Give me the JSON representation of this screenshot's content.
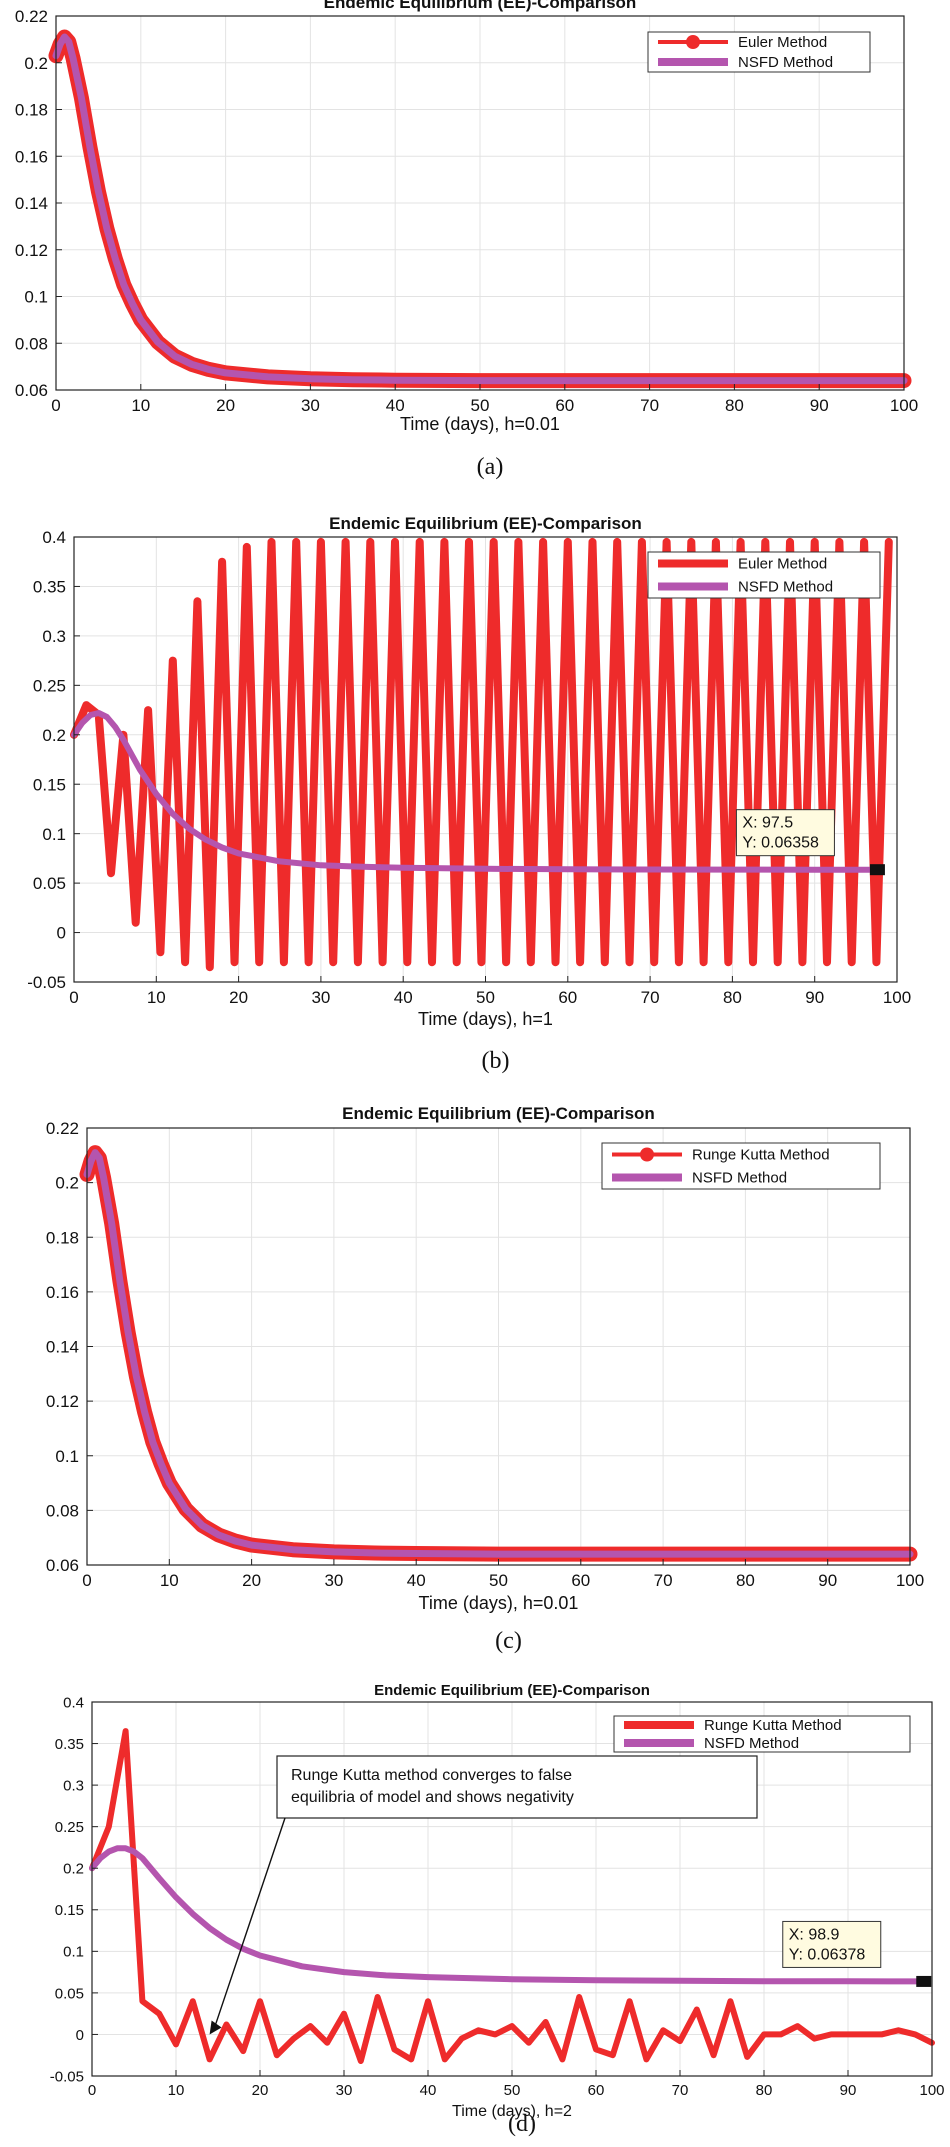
{
  "colors": {
    "euler": "#EE2B2B",
    "rk": "#EE2B2B",
    "nsfd": "#B455AE",
    "grid": "#e3e3e3",
    "axis": "#222222",
    "datatip_bg": "#fffbe0"
  },
  "chart_data": [
    {
      "panel": "a",
      "type": "line",
      "title": "Endemic Equilibrium (EE)-Comparison",
      "xlabel": "Time (days), h=0.01",
      "ylabel": "",
      "caption": "(a)",
      "xlim": [
        0,
        100
      ],
      "ylim": [
        0.06,
        0.22
      ],
      "xticks": [
        0,
        10,
        20,
        30,
        40,
        50,
        60,
        70,
        80,
        90,
        100
      ],
      "yticks": [
        0.06,
        0.08,
        0.1,
        0.12,
        0.14,
        0.16,
        0.18,
        0.2,
        0.22
      ],
      "ytick_labels": [
        "0.06",
        "0.08",
        "0.1",
        "0.12",
        "0.14",
        "0.16",
        "0.18",
        "0.2",
        "0.22"
      ],
      "grid": true,
      "legend": "top-right",
      "series": [
        {
          "name": "Euler Method",
          "role": "red",
          "style": "thick-marker",
          "x": [
            0,
            0.5,
            1,
            1.5,
            2,
            3,
            4,
            5,
            6,
            7,
            8,
            9,
            10,
            12,
            14,
            16,
            18,
            20,
            25,
            30,
            35,
            40,
            50,
            60,
            70,
            80,
            90,
            100
          ],
          "y": [
            0.203,
            0.208,
            0.211,
            0.209,
            0.202,
            0.185,
            0.164,
            0.145,
            0.129,
            0.116,
            0.105,
            0.097,
            0.09,
            0.0805,
            0.0745,
            0.071,
            0.0688,
            0.0673,
            0.0656,
            0.0648,
            0.0644,
            0.0642,
            0.064,
            0.064,
            0.064,
            0.064,
            0.064,
            0.064
          ]
        },
        {
          "name": "NSFD Method",
          "role": "purple",
          "style": "line",
          "x": [
            0,
            0.5,
            1,
            1.5,
            2,
            3,
            4,
            5,
            6,
            7,
            8,
            9,
            10,
            12,
            14,
            16,
            18,
            20,
            25,
            30,
            35,
            40,
            50,
            60,
            70,
            80,
            90,
            100
          ],
          "y": [
            0.203,
            0.208,
            0.211,
            0.209,
            0.202,
            0.185,
            0.164,
            0.145,
            0.129,
            0.116,
            0.105,
            0.097,
            0.09,
            0.0805,
            0.0745,
            0.071,
            0.0688,
            0.0673,
            0.0656,
            0.0648,
            0.0644,
            0.0642,
            0.064,
            0.064,
            0.064,
            0.064,
            0.064,
            0.064
          ]
        }
      ]
    },
    {
      "panel": "b",
      "type": "line",
      "title": "Endemic Equilibrium (EE)-Comparison",
      "xlabel": "Time (days), h=1",
      "ylabel": "",
      "caption": "(b)",
      "xlim": [
        0,
        100
      ],
      "ylim": [
        -0.05,
        0.4
      ],
      "xticks": [
        0,
        10,
        20,
        30,
        40,
        50,
        60,
        70,
        80,
        90,
        100
      ],
      "yticks": [
        -0.05,
        0,
        0.05,
        0.1,
        0.15,
        0.2,
        0.25,
        0.3,
        0.35,
        0.4
      ],
      "ytick_labels": [
        "-0.05",
        "0",
        "0.05",
        "0.1",
        "0.15",
        "0.2",
        "0.25",
        "0.3",
        "0.35",
        "0.4"
      ],
      "grid": true,
      "legend": "top-right",
      "datatip": {
        "x_label": "X: 97.5",
        "y_label": "Y: 0.06358",
        "x": 97.5,
        "y": 0.06358
      },
      "series": [
        {
          "name": "Euler Method",
          "role": "red",
          "style": "line",
          "x": [
            0,
            1.5,
            3,
            4.5,
            6,
            7.5,
            9,
            10.5,
            12,
            13.5,
            15,
            16.5,
            18,
            19.5,
            21,
            22.5,
            24,
            25.5,
            27,
            28.5,
            30,
            31.5,
            33,
            34.5,
            36,
            37.5,
            39,
            40.5,
            42,
            43.5,
            45,
            46.5,
            48,
            49.5,
            51,
            52.5,
            54,
            55.5,
            57,
            58.5,
            60,
            61.5,
            63,
            64.5,
            66,
            67.5,
            69,
            70.5,
            72,
            73.5,
            75,
            76.5,
            78,
            79.5,
            81,
            82.5,
            84,
            85.5,
            87,
            88.5,
            90,
            91.5,
            93,
            94.5,
            96,
            97.5,
            99
          ],
          "y": [
            0.2,
            0.23,
            0.22,
            0.06,
            0.2,
            0.01,
            0.225,
            -0.02,
            0.275,
            -0.03,
            0.335,
            -0.035,
            0.375,
            -0.03,
            0.39,
            -0.03,
            0.395,
            -0.03,
            0.395,
            -0.03,
            0.395,
            -0.03,
            0.395,
            -0.03,
            0.395,
            -0.03,
            0.395,
            -0.03,
            0.395,
            -0.03,
            0.395,
            -0.03,
            0.395,
            -0.03,
            0.395,
            -0.03,
            0.395,
            -0.03,
            0.395,
            -0.03,
            0.395,
            -0.03,
            0.395,
            -0.03,
            0.395,
            -0.03,
            0.395,
            -0.03,
            0.395,
            -0.03,
            0.395,
            -0.03,
            0.395,
            -0.03,
            0.395,
            -0.03,
            0.395,
            -0.03,
            0.395,
            -0.03,
            0.395,
            -0.03,
            0.395,
            -0.03,
            0.395,
            -0.03,
            0.395
          ]
        },
        {
          "name": "NSFD Method",
          "role": "purple",
          "style": "line",
          "x": [
            0,
            1,
            2,
            3,
            4,
            5,
            6,
            7,
            8,
            10,
            12,
            14,
            16,
            18,
            20,
            25,
            30,
            35,
            40,
            50,
            60,
            70,
            80,
            90,
            97.5
          ],
          "y": [
            0.2,
            0.212,
            0.22,
            0.222,
            0.218,
            0.208,
            0.195,
            0.18,
            0.165,
            0.14,
            0.12,
            0.105,
            0.094,
            0.086,
            0.08,
            0.072,
            0.068,
            0.0665,
            0.0655,
            0.0645,
            0.064,
            0.0638,
            0.0637,
            0.0636,
            0.06358
          ]
        }
      ]
    },
    {
      "panel": "c",
      "type": "line",
      "title": "Endemic Equilibrium (EE)-Comparison",
      "xlabel": "Time (days), h=0.01",
      "ylabel": "",
      "caption": "(c)",
      "xlim": [
        0,
        100
      ],
      "ylim": [
        0.06,
        0.22
      ],
      "xticks": [
        0,
        10,
        20,
        30,
        40,
        50,
        60,
        70,
        80,
        90,
        100
      ],
      "yticks": [
        0.06,
        0.08,
        0.1,
        0.12,
        0.14,
        0.16,
        0.18,
        0.2,
        0.22
      ],
      "ytick_labels": [
        "0.06",
        "0.08",
        "0.1",
        "0.12",
        "0.14",
        "0.16",
        "0.18",
        "0.2",
        "0.22"
      ],
      "grid": true,
      "legend": "top-right",
      "series": [
        {
          "name": "Runge Kutta Method",
          "role": "red",
          "style": "thick-marker",
          "x": [
            0,
            0.5,
            1,
            1.5,
            2,
            3,
            4,
            5,
            6,
            7,
            8,
            9,
            10,
            12,
            14,
            16,
            18,
            20,
            25,
            30,
            35,
            40,
            50,
            60,
            70,
            80,
            90,
            100
          ],
          "y": [
            0.203,
            0.208,
            0.211,
            0.209,
            0.202,
            0.185,
            0.164,
            0.145,
            0.129,
            0.116,
            0.105,
            0.097,
            0.09,
            0.0805,
            0.0745,
            0.071,
            0.0688,
            0.0673,
            0.0656,
            0.0648,
            0.0644,
            0.0642,
            0.064,
            0.064,
            0.064,
            0.064,
            0.064,
            0.064
          ]
        },
        {
          "name": "NSFD Method",
          "role": "purple",
          "style": "line",
          "x": [
            0,
            0.5,
            1,
            1.5,
            2,
            3,
            4,
            5,
            6,
            7,
            8,
            9,
            10,
            12,
            14,
            16,
            18,
            20,
            25,
            30,
            35,
            40,
            50,
            60,
            70,
            80,
            90,
            100
          ],
          "y": [
            0.203,
            0.208,
            0.211,
            0.209,
            0.202,
            0.185,
            0.164,
            0.145,
            0.129,
            0.116,
            0.105,
            0.097,
            0.09,
            0.0805,
            0.0745,
            0.071,
            0.0688,
            0.0673,
            0.0656,
            0.0648,
            0.0644,
            0.0642,
            0.064,
            0.064,
            0.064,
            0.064,
            0.064,
            0.064
          ]
        }
      ]
    },
    {
      "panel": "d",
      "type": "line",
      "title": "Endemic Equilibrium (EE)-Comparison",
      "xlabel": "Time (days), h=2",
      "ylabel": "",
      "caption": "(d)",
      "xlim": [
        0,
        100
      ],
      "ylim": [
        -0.05,
        0.4
      ],
      "xticks": [
        0,
        10,
        20,
        30,
        40,
        50,
        60,
        70,
        80,
        90,
        100
      ],
      "yticks": [
        -0.05,
        0,
        0.05,
        0.1,
        0.15,
        0.2,
        0.25,
        0.3,
        0.35,
        0.4
      ],
      "ytick_labels": [
        "-0.05",
        "0",
        "0.05",
        "0.1",
        "0.15",
        "0.2",
        "0.25",
        "0.3",
        "0.35",
        "0.4"
      ],
      "grid": true,
      "legend": "top-right",
      "datatip": {
        "x_label": "X: 98.9",
        "y_label": "Y: 0.06378",
        "x": 98.9,
        "y": 0.06378
      },
      "annotation": {
        "lines": [
          "Runge Kutta method converges to false",
          "equilibria of model and shows negativity"
        ],
        "arrow_to": {
          "x": 14,
          "y": 0.0
        }
      },
      "series": [
        {
          "name": "Runge Kutta Method",
          "role": "red",
          "style": "line",
          "x": [
            0,
            2,
            4,
            6,
            8,
            10,
            12,
            14,
            16,
            18,
            20,
            22,
            24,
            26,
            28,
            30,
            32,
            34,
            36,
            38,
            40,
            42,
            44,
            46,
            48,
            50,
            52,
            54,
            56,
            58,
            60,
            62,
            64,
            66,
            68,
            70,
            72,
            74,
            76,
            78,
            80,
            82,
            84,
            86,
            88,
            90,
            92,
            94,
            96,
            98,
            100
          ],
          "y": [
            0.2,
            0.25,
            0.365,
            0.04,
            0.025,
            -0.012,
            0.04,
            -0.03,
            0.012,
            -0.02,
            0.04,
            -0.025,
            -0.005,
            0.01,
            -0.01,
            0.025,
            -0.032,
            0.045,
            -0.018,
            -0.03,
            0.04,
            -0.03,
            -0.005,
            0.005,
            0.0,
            0.01,
            -0.01,
            0.015,
            -0.03,
            0.045,
            -0.018,
            -0.025,
            0.04,
            -0.03,
            0.005,
            -0.008,
            0.03,
            -0.025,
            0.04,
            -0.027,
            0.0,
            0.0,
            0.01,
            -0.005,
            0.0,
            0.0,
            0.0,
            0.0,
            0.005,
            0.0,
            -0.01
          ]
        },
        {
          "name": "NSFD Method",
          "role": "purple",
          "style": "line",
          "x": [
            0,
            1,
            2,
            3,
            4,
            5,
            6,
            7,
            8,
            10,
            12,
            14,
            16,
            18,
            20,
            25,
            30,
            35,
            40,
            50,
            60,
            70,
            80,
            90,
            98.9
          ],
          "y": [
            0.2,
            0.212,
            0.22,
            0.224,
            0.224,
            0.22,
            0.212,
            0.2,
            0.188,
            0.165,
            0.145,
            0.128,
            0.114,
            0.103,
            0.095,
            0.082,
            0.075,
            0.071,
            0.069,
            0.0665,
            0.0652,
            0.0645,
            0.0641,
            0.0639,
            0.06378
          ]
        }
      ]
    }
  ]
}
